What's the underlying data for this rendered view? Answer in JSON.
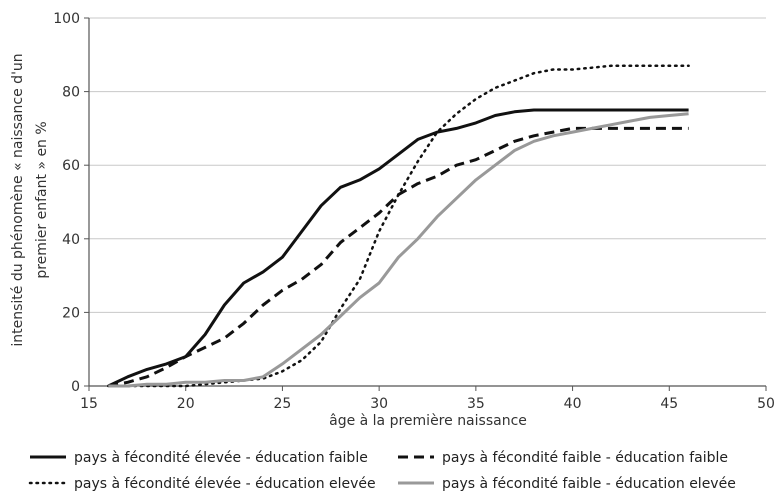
{
  "chart_data": {
    "type": "line",
    "title": "",
    "xlabel": "âge à la première naissance",
    "ylabel_lines": [
      "intensité du phénomène « naissance d'un",
      "premier enfant » en %"
    ],
    "xlim": [
      15,
      50
    ],
    "ylim": [
      0,
      100
    ],
    "x_ticks": [
      15,
      20,
      25,
      30,
      35,
      40,
      45,
      50
    ],
    "y_ticks": [
      0,
      20,
      40,
      60,
      80,
      100
    ],
    "grid": "horizontal",
    "legend_position": "bottom",
    "series": [
      {
        "name": "pays à fécondité élevée - éducation faible",
        "style": "solid",
        "color": "#111111",
        "points": [
          [
            16,
            0
          ],
          [
            17,
            2.5
          ],
          [
            18,
            4.5
          ],
          [
            19,
            6
          ],
          [
            20,
            8
          ],
          [
            21,
            14
          ],
          [
            22,
            22
          ],
          [
            23,
            28
          ],
          [
            24,
            31
          ],
          [
            25,
            35
          ],
          [
            26,
            42
          ],
          [
            27,
            49
          ],
          [
            28,
            54
          ],
          [
            29,
            56
          ],
          [
            30,
            59
          ],
          [
            31,
            63
          ],
          [
            32,
            67
          ],
          [
            33,
            69
          ],
          [
            34,
            70
          ],
          [
            35,
            71.5
          ],
          [
            36,
            73.5
          ],
          [
            37,
            74.5
          ],
          [
            38,
            75
          ],
          [
            39,
            75
          ],
          [
            40,
            75
          ],
          [
            41,
            75
          ],
          [
            42,
            75
          ],
          [
            43,
            75
          ],
          [
            44,
            75
          ],
          [
            45,
            75
          ],
          [
            46,
            75
          ]
        ]
      },
      {
        "name": "pays à fécondité faible - éducation faible",
        "style": "dashed",
        "color": "#111111",
        "points": [
          [
            16,
            0
          ],
          [
            17,
            1
          ],
          [
            18,
            2.5
          ],
          [
            19,
            5
          ],
          [
            20,
            8
          ],
          [
            21,
            10.5
          ],
          [
            22,
            13
          ],
          [
            23,
            17
          ],
          [
            24,
            22
          ],
          [
            25,
            26
          ],
          [
            26,
            29
          ],
          [
            27,
            33
          ],
          [
            28,
            39
          ],
          [
            29,
            43
          ],
          [
            30,
            47
          ],
          [
            31,
            52
          ],
          [
            32,
            55
          ],
          [
            33,
            57
          ],
          [
            34,
            60
          ],
          [
            35,
            61.5
          ],
          [
            36,
            64
          ],
          [
            37,
            66.5
          ],
          [
            38,
            68
          ],
          [
            39,
            69
          ],
          [
            40,
            70
          ],
          [
            41,
            70
          ],
          [
            42,
            70
          ],
          [
            43,
            70
          ],
          [
            44,
            70
          ],
          [
            45,
            70
          ],
          [
            46,
            70
          ]
        ]
      },
      {
        "name": "pays à fécondité élevée - éducation elevée",
        "style": "dotted",
        "color": "#111111",
        "points": [
          [
            16,
            0
          ],
          [
            17,
            0
          ],
          [
            18,
            0
          ],
          [
            19,
            0
          ],
          [
            20,
            0
          ],
          [
            21,
            0.5
          ],
          [
            22,
            1
          ],
          [
            23,
            1.5
          ],
          [
            24,
            2
          ],
          [
            25,
            4
          ],
          [
            26,
            7
          ],
          [
            27,
            12
          ],
          [
            28,
            21
          ],
          [
            29,
            29
          ],
          [
            30,
            42
          ],
          [
            31,
            52
          ],
          [
            32,
            61
          ],
          [
            33,
            69
          ],
          [
            34,
            74
          ],
          [
            35,
            78
          ],
          [
            36,
            81
          ],
          [
            37,
            83
          ],
          [
            38,
            85
          ],
          [
            39,
            86
          ],
          [
            40,
            86
          ],
          [
            41,
            86.5
          ],
          [
            42,
            87
          ],
          [
            43,
            87
          ],
          [
            44,
            87
          ],
          [
            45,
            87
          ],
          [
            46,
            87
          ]
        ]
      },
      {
        "name": "pays à fécondité faible - éducation elevée",
        "style": "solid",
        "color": "#999999",
        "points": [
          [
            16,
            0
          ],
          [
            17,
            0
          ],
          [
            18,
            0.5
          ],
          [
            19,
            0.5
          ],
          [
            20,
            1
          ],
          [
            21,
            1
          ],
          [
            22,
            1.5
          ],
          [
            23,
            1.5
          ],
          [
            24,
            2.5
          ],
          [
            25,
            6
          ],
          [
            26,
            10
          ],
          [
            27,
            14
          ],
          [
            28,
            19
          ],
          [
            29,
            24
          ],
          [
            30,
            28
          ],
          [
            31,
            35
          ],
          [
            32,
            40
          ],
          [
            33,
            46
          ],
          [
            34,
            51
          ],
          [
            35,
            56
          ],
          [
            36,
            60
          ],
          [
            37,
            64
          ],
          [
            38,
            66.5
          ],
          [
            39,
            68
          ],
          [
            40,
            69
          ],
          [
            41,
            70
          ],
          [
            42,
            71
          ],
          [
            43,
            72
          ],
          [
            44,
            73
          ],
          [
            45,
            73.5
          ],
          [
            46,
            74
          ]
        ]
      }
    ]
  }
}
